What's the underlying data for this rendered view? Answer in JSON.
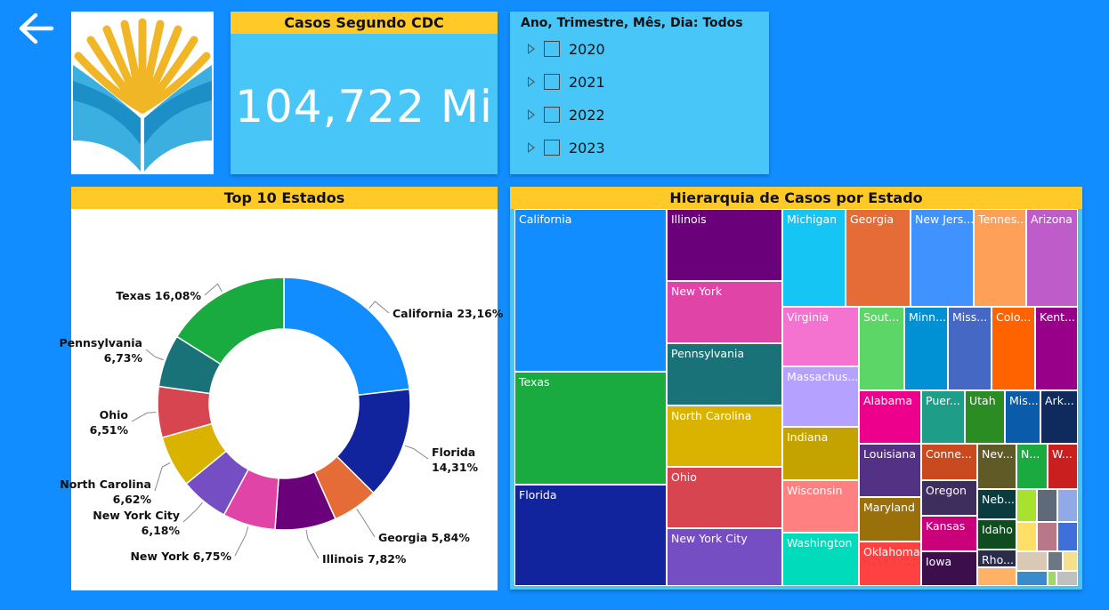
{
  "header": {
    "back_icon": "left-arrow-icon",
    "logo_icon": "wheat-book-logo"
  },
  "kpi_card": {
    "title": "Casos Segundo CDC",
    "value": "104,722 Mi"
  },
  "slicer": {
    "title": "Ano, Trimestre, Mês, Dia: Todos",
    "items": [
      {
        "label": "2020"
      },
      {
        "label": "2021"
      },
      {
        "label": "2022"
      },
      {
        "label": "2023"
      }
    ]
  },
  "donut": {
    "title": "Top 10 Estados"
  },
  "treemap": {
    "title": "Hierarquia de Casos por Estado"
  },
  "chart_data": [
    {
      "type": "pie",
      "title": "Top 10 Estados",
      "categories": [
        "California",
        "Florida",
        "Georgia",
        "Illinois",
        "New York",
        "New York City",
        "North Carolina",
        "Ohio",
        "Pennsylvania",
        "Texas"
      ],
      "values": [
        23.16,
        14.31,
        5.84,
        7.82,
        6.75,
        6.18,
        6.62,
        6.51,
        6.73,
        16.08
      ],
      "labels": [
        "California 23,16%",
        "Florida 14,31%",
        "Georgia 5,84%",
        "Illinois 7,82%",
        "New York 6,75%",
        "New York City 6,18%",
        "North Carolina 6,62%",
        "Ohio 6,51%",
        "Pennsylvania 6,73%",
        "Texas 16,08%"
      ],
      "colors": [
        "#118DFF",
        "#12239E",
        "#E66C37",
        "#6B007B",
        "#E044A7",
        "#744EC2",
        "#D9B300",
        "#D64550",
        "#197278",
        "#1AAB40"
      ],
      "donut": true
    },
    {
      "type": "treemap",
      "title": "Hierarquia de Casos por Estado",
      "tiles": [
        {
          "label": "California",
          "color": "#118DFF"
        },
        {
          "label": "Texas",
          "color": "#1AAB40"
        },
        {
          "label": "Florida",
          "color": "#12239E"
        },
        {
          "label": "Illinois",
          "color": "#6B007B"
        },
        {
          "label": "New York",
          "color": "#E044A7"
        },
        {
          "label": "Pennsylvania",
          "color": "#197278"
        },
        {
          "label": "North Carolina",
          "color": "#D9B300"
        },
        {
          "label": "Ohio",
          "color": "#D64550"
        },
        {
          "label": "New York City",
          "color": "#744EC2"
        },
        {
          "label": "Michigan",
          "color": "#15C6F4"
        },
        {
          "label": "Georgia",
          "color": "#E66C37"
        },
        {
          "label": "New Jers...",
          "color": "#4092FF"
        },
        {
          "label": "Tennes...",
          "color": "#FFA058"
        },
        {
          "label": "Arizona",
          "color": "#BE5DC9"
        },
        {
          "label": "Virginia",
          "color": "#F472D0"
        },
        {
          "label": "Massachus...",
          "color": "#B5A1FF"
        },
        {
          "label": "Indiana",
          "color": "#C4A200"
        },
        {
          "label": "Wisconsin",
          "color": "#FF8080"
        },
        {
          "label": "Washington",
          "color": "#00DBBC"
        },
        {
          "label": "Sout...",
          "color": "#5BD667"
        },
        {
          "label": "Minn...",
          "color": "#0091D5"
        },
        {
          "label": "Miss...",
          "color": "#4668C5"
        },
        {
          "label": "Colo...",
          "color": "#FF6300"
        },
        {
          "label": "Kent...",
          "color": "#99008A"
        },
        {
          "label": "Alabama",
          "color": "#EC008C"
        },
        {
          "label": "Puer...",
          "color": "#1E9E88"
        },
        {
          "label": "Utah",
          "color": "#2B8C24"
        },
        {
          "label": "Mis...",
          "color": "#0A5BAA"
        },
        {
          "label": "Ark...",
          "color": "#0F2A5C"
        },
        {
          "label": "Louisiana",
          "color": "#533285"
        },
        {
          "label": "Maryland",
          "color": "#99700A"
        },
        {
          "label": "Oklahoma",
          "color": "#FF4141"
        },
        {
          "label": "Conne...",
          "color": "#C84A1E"
        },
        {
          "label": "Oregon",
          "color": "#3D2E5E"
        },
        {
          "label": "Kansas",
          "color": "#C9007A"
        },
        {
          "label": "Iowa",
          "color": "#3C0F4C"
        },
        {
          "label": "Nev...",
          "color": "#5F5A26"
        },
        {
          "label": "N...",
          "color": "#1AAB40"
        },
        {
          "label": "W...",
          "color": "#C91F1F"
        },
        {
          "label": "Neb...",
          "color": "#0A3B3F"
        },
        {
          "label": "Idaho",
          "color": "#0F4D1F"
        },
        {
          "label": "Rho...",
          "color": "#2B2B4A"
        }
      ]
    }
  ]
}
